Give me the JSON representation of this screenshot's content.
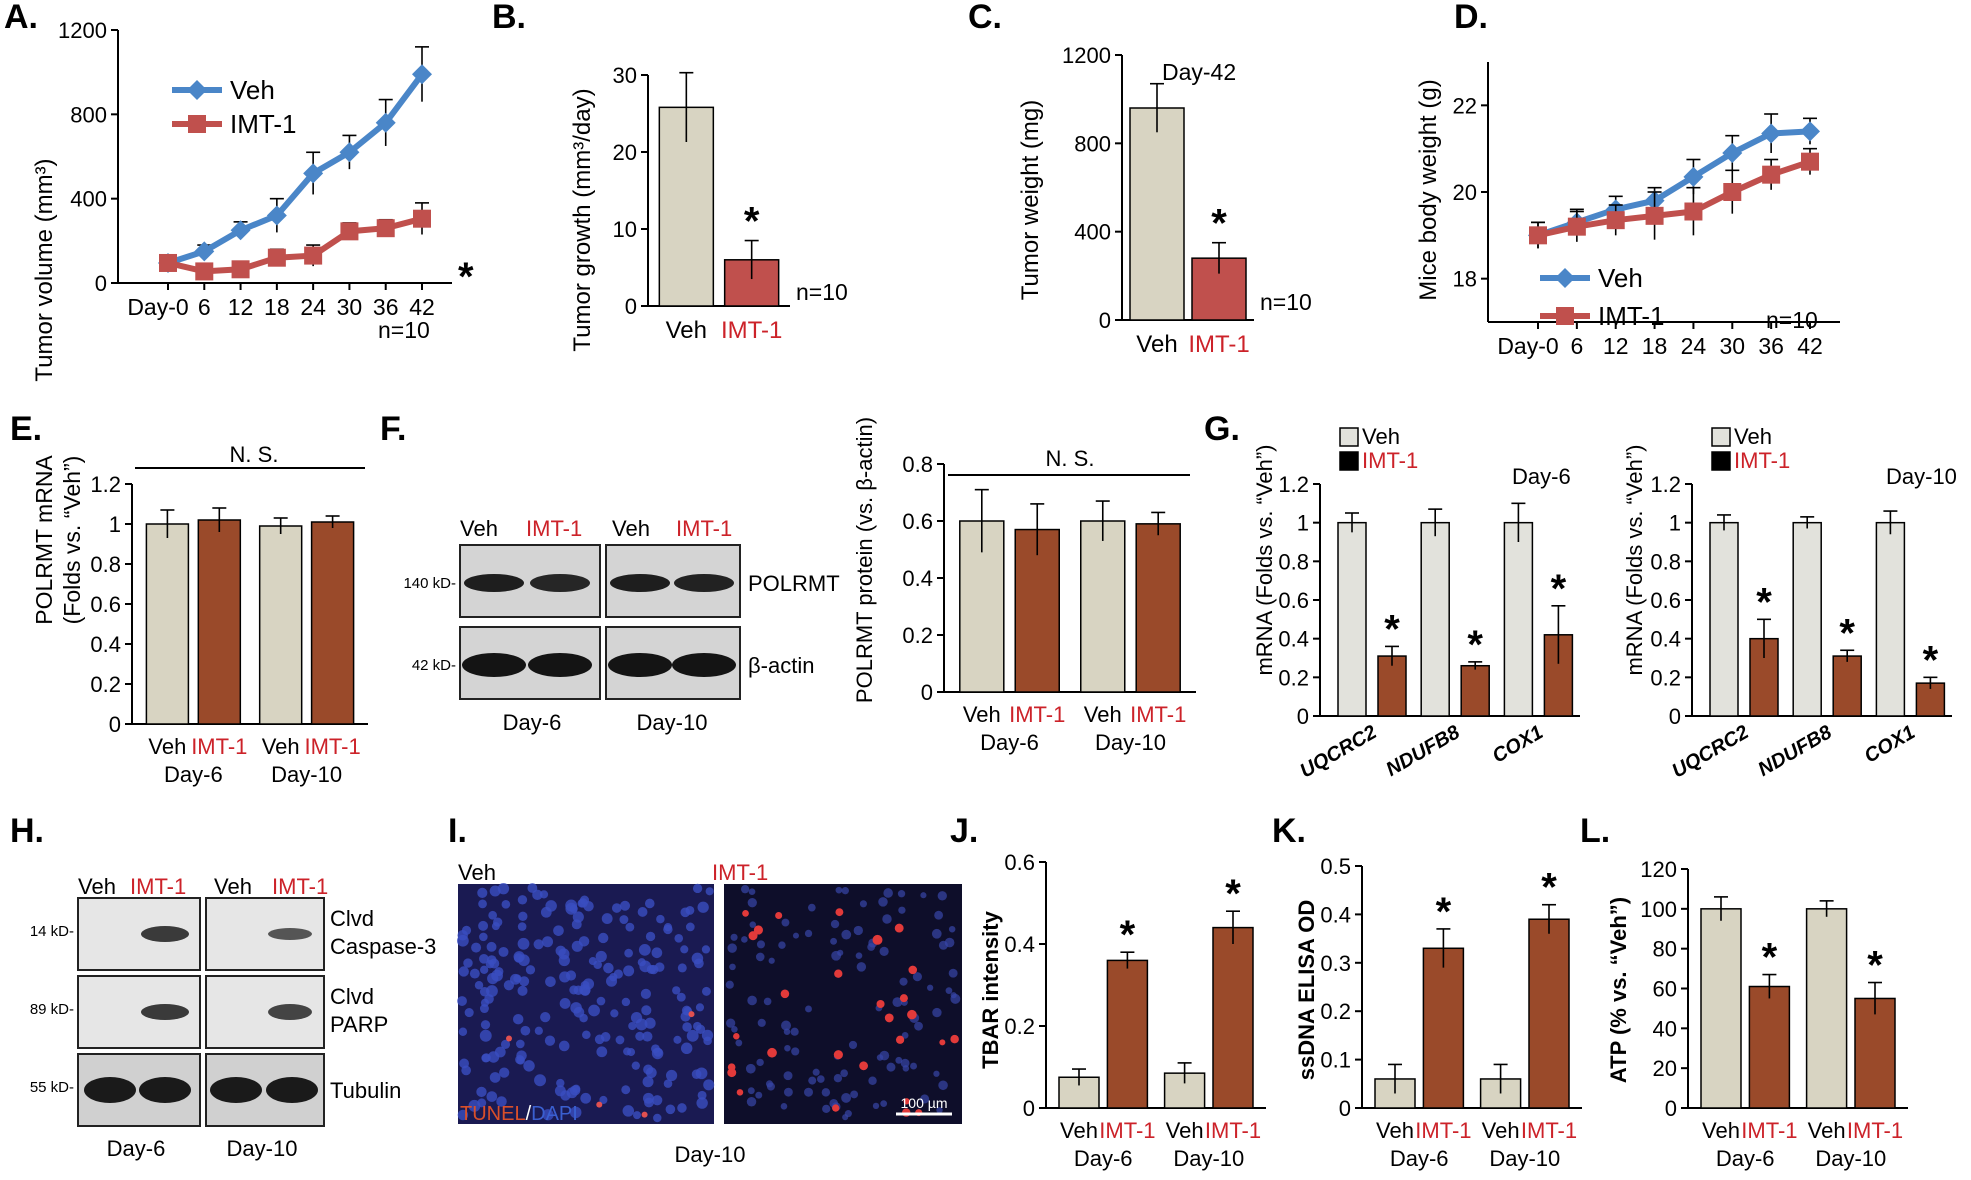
{
  "colors": {
    "veh_line": "#4a86c8",
    "imt_line": "#c0504d",
    "veh_bar": "#d8d4c2",
    "imt_bar_b": "#c0504d",
    "imt_bar": "#9a4a2a",
    "g_veh": "#e2e2dc",
    "g_imt": "#9a4a2a",
    "label_red": "#cc2229"
  },
  "panels": {
    "A": {
      "letter": "A.",
      "ylabel": "Tumor volume (mm³)",
      "n": "n=10",
      "star": "*"
    },
    "B": {
      "letter": "B.",
      "ylabel": "Tumor growth (mm³/day)",
      "n": "n=10",
      "star": "*"
    },
    "C": {
      "letter": "C.",
      "ylabel": "Tumor weight (mg)",
      "n": "n=10",
      "star": "*",
      "note": "Day-42"
    },
    "D": {
      "letter": "D.",
      "ylabel": "Mice body weight (g)",
      "n": "n=10"
    },
    "E": {
      "letter": "E.",
      "ylabel1": "POLRMT mRNA",
      "ylabel2": "(Folds vs. “Veh”)",
      "ns": "N. S."
    },
    "F": {
      "letter": "F.",
      "ylabel": "POLRMT protein (vs. β-actin)",
      "ns": "N. S."
    },
    "G": {
      "letter": "G.",
      "ylabel": "mRNA (Folds vs. “Veh”)",
      "day6": "Day-6",
      "day10": "Day-10"
    },
    "H": {
      "letter": "H."
    },
    "I": {
      "letter": "I.",
      "veh": "Veh",
      "imt": "IMT-1",
      "stain_tunel": "TUNEL",
      "stain_sep": "/",
      "stain_dapi": "DAPI",
      "scale": "100 µm",
      "day": "Day-10"
    },
    "J": {
      "letter": "J.",
      "ylabel": "TBAR intensity"
    },
    "K": {
      "letter": "K.",
      "ylabel": "ssDNA ELISA OD"
    },
    "L": {
      "letter": "L.",
      "ylabel": "ATP (% vs. “Veh”)"
    }
  },
  "labels": {
    "veh": "Veh",
    "imt": "IMT-1",
    "day6": "Day-6",
    "day10": "Day-10",
    "polrmt": "POLRMT",
    "bactin": "β-actin",
    "kd140": "140 kD-",
    "kd42": "42 kD-",
    "kd14": "14 kD-",
    "kd89": "89 kD-",
    "kd55": "55 kD-",
    "clvd_casp_1": "Clvd",
    "clvd_casp_2": "Caspase-3",
    "clvd_parp_1": "Clvd",
    "clvd_parp_2": "PARP",
    "tubulin": "Tubulin",
    "star": "*"
  },
  "chart_data": [
    {
      "id": "A",
      "type": "line",
      "ylabel": "Tumor volume (mm³)",
      "x": [
        "Day-0",
        "6",
        "12",
        "18",
        "24",
        "30",
        "36",
        "42"
      ],
      "ylim": [
        0,
        1200
      ],
      "yticks": [
        0,
        400,
        800,
        1200
      ],
      "series": [
        {
          "name": "Veh",
          "values": [
            95,
            150,
            250,
            320,
            520,
            620,
            760,
            990
          ],
          "err": [
            30,
            30,
            40,
            80,
            100,
            80,
            110,
            130
          ]
        },
        {
          "name": "IMT-1",
          "values": [
            95,
            55,
            65,
            120,
            130,
            245,
            260,
            305
          ],
          "err": [
            25,
            20,
            25,
            40,
            50,
            40,
            40,
            75
          ]
        }
      ]
    },
    {
      "id": "B",
      "type": "bar",
      "ylabel": "Tumor growth (mm³/day)",
      "categories": [
        "Veh",
        "IMT-1"
      ],
      "values": [
        25.8,
        6
      ],
      "err": [
        4.5,
        2.5
      ],
      "ylim": [
        0,
        30
      ],
      "yticks": [
        0,
        10,
        20,
        30
      ]
    },
    {
      "id": "C",
      "type": "bar",
      "ylabel": "Tumor weight (mg)",
      "categories": [
        "Veh",
        "IMT-1"
      ],
      "values": [
        960,
        280
      ],
      "err": [
        110,
        70
      ],
      "ylim": [
        0,
        1200
      ],
      "yticks": [
        0,
        400,
        800,
        1200
      ]
    },
    {
      "id": "D",
      "type": "line",
      "ylabel": "Mice body weight (g)",
      "x": [
        "Day-0",
        "6",
        "12",
        "18",
        "24",
        "30",
        "36",
        "42"
      ],
      "ylim": [
        17,
        23
      ],
      "yticks": [
        18,
        20,
        22
      ],
      "series": [
        {
          "name": "Veh",
          "values": [
            19.0,
            19.3,
            19.6,
            19.8,
            20.35,
            20.9,
            21.35,
            21.4
          ],
          "err": [
            0.3,
            0.3,
            0.3,
            0.3,
            0.4,
            0.4,
            0.45,
            0.3
          ]
        },
        {
          "name": "IMT-1",
          "values": [
            19.0,
            19.2,
            19.35,
            19.45,
            19.55,
            20.0,
            20.4,
            20.7
          ],
          "err": [
            0.3,
            0.35,
            0.35,
            0.55,
            0.55,
            0.5,
            0.35,
            0.3
          ]
        }
      ]
    },
    {
      "id": "E",
      "type": "bar",
      "ylabel": "POLRMT mRNA (Folds vs. “Veh”)",
      "categories": [
        "Veh",
        "IMT-1",
        "Veh",
        "IMT-1"
      ],
      "groups": [
        "Day-6",
        "Day-10"
      ],
      "values": [
        1.0,
        1.02,
        0.99,
        1.01
      ],
      "err": [
        0.07,
        0.06,
        0.04,
        0.03
      ],
      "ylim": [
        0,
        1.2
      ],
      "yticks": [
        0,
        0.2,
        0.4,
        0.6,
        0.8,
        1,
        1.2
      ],
      "annotation": "N. S."
    },
    {
      "id": "F",
      "type": "bar",
      "ylabel": "POLRMT protein (vs. β-actin)",
      "categories": [
        "Veh",
        "IMT-1",
        "Veh",
        "IMT-1"
      ],
      "groups": [
        "Day-6",
        "Day-10"
      ],
      "values": [
        0.6,
        0.57,
        0.6,
        0.59
      ],
      "err": [
        0.11,
        0.09,
        0.07,
        0.04
      ],
      "ylim": [
        0,
        0.8
      ],
      "yticks": [
        0,
        0.2,
        0.4,
        0.6,
        0.8
      ],
      "annotation": "N. S."
    },
    {
      "id": "G1",
      "type": "bar",
      "ylabel": "mRNA (Folds vs. “Veh”)",
      "categories": [
        "UQCRC2",
        "NDUFB8",
        "COX1"
      ],
      "series": [
        {
          "name": "Veh",
          "values": [
            1.0,
            1.0,
            1.0
          ],
          "err": [
            0.05,
            0.07,
            0.1
          ]
        },
        {
          "name": "IMT-1",
          "values": [
            0.31,
            0.26,
            0.42
          ],
          "err": [
            0.05,
            0.02,
            0.15
          ]
        }
      ],
      "ylim": [
        0,
        1.2
      ],
      "yticks": [
        0,
        0.2,
        0.4,
        0.6,
        0.8,
        1,
        1.2
      ],
      "title": "Day-6"
    },
    {
      "id": "G2",
      "type": "bar",
      "ylabel": "mRNA (Folds vs. “Veh”)",
      "categories": [
        "UQCRC2",
        "NDUFB8",
        "COX1"
      ],
      "series": [
        {
          "name": "Veh",
          "values": [
            1.0,
            1.0,
            1.0
          ],
          "err": [
            0.04,
            0.03,
            0.06
          ]
        },
        {
          "name": "IMT-1",
          "values": [
            0.4,
            0.31,
            0.17
          ],
          "err": [
            0.1,
            0.03,
            0.03
          ]
        }
      ],
      "ylim": [
        0,
        1.2
      ],
      "yticks": [
        0,
        0.2,
        0.4,
        0.6,
        0.8,
        1,
        1.2
      ],
      "title": "Day-10"
    },
    {
      "id": "J",
      "type": "bar",
      "ylabel": "TBAR intensity",
      "categories": [
        "Veh",
        "IMT-1",
        "Veh",
        "IMT-1"
      ],
      "groups": [
        "Day-6",
        "Day-10"
      ],
      "values": [
        0.075,
        0.36,
        0.085,
        0.44
      ],
      "err": [
        0.02,
        0.02,
        0.025,
        0.04
      ],
      "ylim": [
        0,
        0.6
      ],
      "yticks": [
        0,
        0.2,
        0.4,
        0.6
      ]
    },
    {
      "id": "K",
      "type": "bar",
      "ylabel": "ssDNA ELISA OD",
      "categories": [
        "Veh",
        "IMT-1",
        "Veh",
        "IMT-1"
      ],
      "groups": [
        "Day-6",
        "Day-10"
      ],
      "values": [
        0.06,
        0.33,
        0.06,
        0.39
      ],
      "err": [
        0.03,
        0.04,
        0.03,
        0.03
      ],
      "ylim": [
        0,
        0.5
      ],
      "yticks": [
        0,
        0.1,
        0.2,
        0.3,
        0.4,
        0.5
      ]
    },
    {
      "id": "L",
      "type": "bar",
      "ylabel": "ATP (% vs. “Veh”)",
      "categories": [
        "Veh",
        "IMT-1",
        "Veh",
        "IMT-1"
      ],
      "groups": [
        "Day-6",
        "Day-10"
      ],
      "values": [
        100,
        61,
        100,
        55
      ],
      "err": [
        6,
        6,
        4,
        8
      ],
      "ylim": [
        0,
        120
      ],
      "yticks": [
        0,
        20,
        40,
        60,
        80,
        100,
        120
      ]
    }
  ]
}
